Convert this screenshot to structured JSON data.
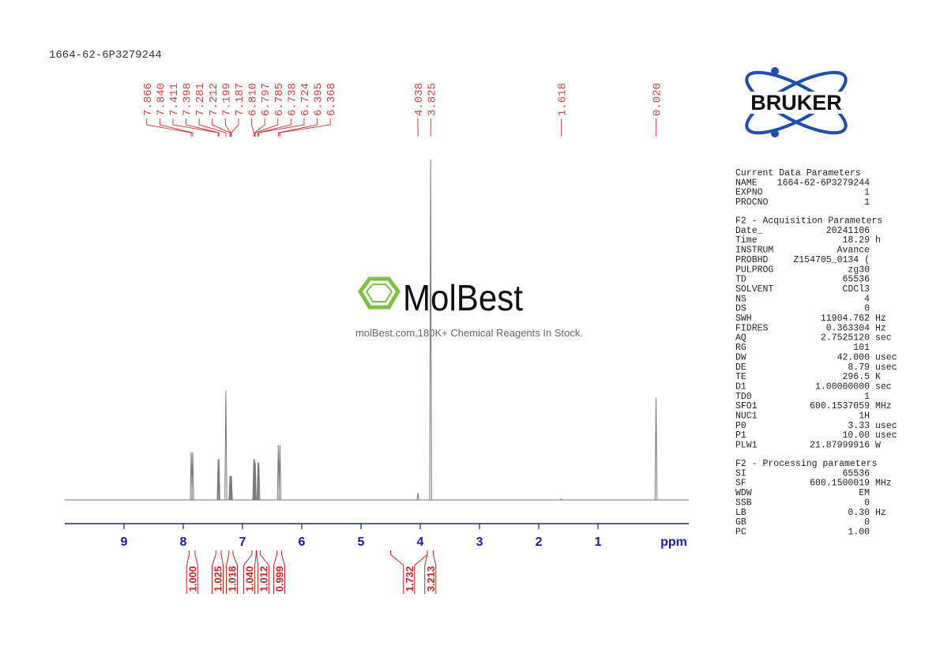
{
  "sample_id": "1664-62-6P3279244",
  "logo": {
    "brand": "BRUKER"
  },
  "watermark": {
    "name": "MolBest",
    "text": "molBest.com,180K+ Chemical Reagents In Stock."
  },
  "chart_data": {
    "type": "nmr",
    "x_label": "ppm",
    "xlim": [
      10,
      -0.533
    ],
    "xticks": [
      9,
      8,
      7,
      6,
      5,
      4,
      3,
      2,
      1
    ],
    "line_color": "#777777",
    "peak_label_color": "#d04040",
    "axis_color": "#1a1aa8",
    "integral_color": "#cc2020",
    "peak_labels": [
      7.866,
      {
        "value": 7.84,
        "label": "7.840"
      },
      7.411,
      7.398,
      7.281,
      7.212,
      7.199,
      7.187,
      {
        "value": 6.81,
        "label": "6.810"
      },
      6.797,
      6.785,
      6.738,
      6.724,
      6.395,
      6.368,
      4.038,
      3.825,
      1.618,
      {
        "value": 0.02,
        "label": "0.020"
      }
    ],
    "peak_heights": [
      14,
      14,
      12,
      12,
      32,
      7,
      7,
      7,
      12,
      12,
      11,
      11,
      11,
      16,
      16,
      2,
      100,
      0.3,
      30
    ],
    "integrals": [
      {
        "value": 1,
        "label": "1.000",
        "from": 7.9,
        "to": 7.8
      },
      {
        "value": 1.025,
        "label": "1.025",
        "from": 7.45,
        "to": 7.36
      },
      {
        "value": 1.018,
        "label": "1.018",
        "from": 7.23,
        "to": 7.16
      },
      {
        "value": 1.04,
        "label": "1.040",
        "from": 6.84,
        "to": 6.77
      },
      {
        "value": 1.012,
        "label": "1.012",
        "from": 6.76,
        "to": 6.7
      },
      {
        "value": 0.999,
        "label": "0.999",
        "from": 6.42,
        "to": 6.34
      },
      {
        "value": 1.732,
        "label": "1.732",
        "from": 4.5,
        "to": 3.88
      },
      {
        "value": 3.213,
        "label": "3.213",
        "from": 3.88,
        "to": 3.78
      }
    ]
  },
  "parameters": [
    {
      "title": "Current Data Parameters",
      "rows": [
        [
          "NAME",
          "1664-62-6P3279244",
          ""
        ],
        [
          "EXPNO",
          "1",
          ""
        ],
        [
          "PROCNO",
          "1",
          ""
        ]
      ]
    },
    {
      "title": "F2 - Acquisition Parameters",
      "rows": [
        [
          "Date_",
          "20241106",
          ""
        ],
        [
          "Time",
          "18.29",
          "h"
        ],
        [
          "INSTRUM",
          "Avance",
          ""
        ],
        [
          "PROBHD",
          "Z154705_0134 (",
          ""
        ],
        [
          "PULPROG",
          "zg30",
          ""
        ],
        [
          "TD",
          "65536",
          ""
        ],
        [
          "SOLVENT",
          "CDCl3",
          ""
        ],
        [
          "NS",
          "4",
          ""
        ],
        [
          "DS",
          "0",
          ""
        ],
        [
          "SWH",
          "11904.762",
          "Hz"
        ],
        [
          "FIDRES",
          "0.363304",
          "Hz"
        ],
        [
          "AQ",
          "2.7525120",
          "sec"
        ],
        [
          "RG",
          "101",
          ""
        ],
        [
          "DW",
          "42.000",
          "usec"
        ],
        [
          "DE",
          "8.79",
          "usec"
        ],
        [
          "TE",
          "296.5",
          "K"
        ],
        [
          "D1",
          "1.00000000",
          "sec"
        ],
        [
          "TD0",
          "1",
          ""
        ],
        [
          "SFO1",
          "600.1537059",
          "MHz"
        ],
        [
          "NUC1",
          "1H",
          ""
        ],
        [
          "P0",
          "3.33",
          "usec"
        ],
        [
          "P1",
          "10.00",
          "usec"
        ],
        [
          "PLW1",
          "21.87999916",
          "W"
        ]
      ]
    },
    {
      "title": "F2 - Processing parameters",
      "rows": [
        [
          "SI",
          "65536",
          ""
        ],
        [
          "SF",
          "600.1500019",
          "MHz"
        ],
        [
          "WDW",
          "EM",
          ""
        ],
        [
          "SSB",
          "0",
          ""
        ],
        [
          "LB",
          "0.30",
          "Hz"
        ],
        [
          "GB",
          "0",
          ""
        ],
        [
          "PC",
          "1.00",
          ""
        ]
      ]
    }
  ]
}
